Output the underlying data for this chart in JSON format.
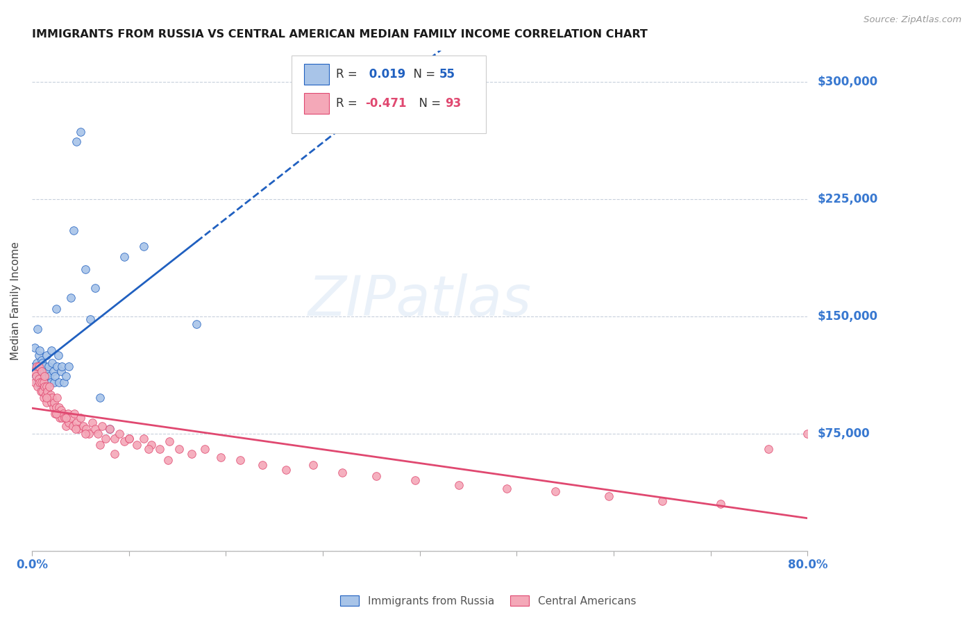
{
  "title": "IMMIGRANTS FROM RUSSIA VS CENTRAL AMERICAN MEDIAN FAMILY INCOME CORRELATION CHART",
  "source": "Source: ZipAtlas.com",
  "ylabel": "Median Family Income",
  "yticks": [
    0,
    75000,
    150000,
    225000,
    300000
  ],
  "ytick_labels": [
    "",
    "$75,000",
    "$150,000",
    "$225,000",
    "$300,000"
  ],
  "ymin": 0,
  "ymax": 320000,
  "xmin": 0.0,
  "xmax": 0.8,
  "color_russia": "#a8c4e8",
  "color_central": "#f4a8b8",
  "color_russia_line": "#2060c0",
  "color_central_line": "#e04870",
  "color_axis_labels": "#3878d0",
  "color_grid": "#c8d0dc",
  "background_color": "#ffffff",
  "russia_x": [
    0.002,
    0.003,
    0.004,
    0.005,
    0.006,
    0.006,
    0.007,
    0.007,
    0.008,
    0.008,
    0.009,
    0.009,
    0.01,
    0.01,
    0.011,
    0.011,
    0.012,
    0.012,
    0.013,
    0.013,
    0.014,
    0.014,
    0.015,
    0.015,
    0.016,
    0.017,
    0.017,
    0.018,
    0.019,
    0.02,
    0.021,
    0.022,
    0.023,
    0.024,
    0.025,
    0.026,
    0.027,
    0.028,
    0.03,
    0.031,
    0.033,
    0.035,
    0.038,
    0.04,
    0.043,
    0.046,
    0.05,
    0.055,
    0.06,
    0.065,
    0.07,
    0.08,
    0.095,
    0.115,
    0.17
  ],
  "russia_y": [
    118000,
    130000,
    112000,
    120000,
    108000,
    142000,
    110000,
    125000,
    118000,
    128000,
    105000,
    115000,
    122000,
    112000,
    108000,
    120000,
    115000,
    105000,
    118000,
    110000,
    112000,
    100000,
    108000,
    125000,
    115000,
    108000,
    118000,
    112000,
    108000,
    128000,
    120000,
    115000,
    108000,
    112000,
    155000,
    118000,
    125000,
    108000,
    115000,
    118000,
    108000,
    112000,
    118000,
    162000,
    205000,
    262000,
    268000,
    180000,
    148000,
    168000,
    98000,
    78000,
    188000,
    195000,
    145000
  ],
  "central_x": [
    0.002,
    0.003,
    0.004,
    0.005,
    0.006,
    0.007,
    0.007,
    0.008,
    0.009,
    0.01,
    0.01,
    0.011,
    0.012,
    0.012,
    0.013,
    0.013,
    0.014,
    0.015,
    0.015,
    0.016,
    0.017,
    0.018,
    0.019,
    0.02,
    0.021,
    0.022,
    0.023,
    0.024,
    0.025,
    0.026,
    0.027,
    0.028,
    0.029,
    0.03,
    0.031,
    0.032,
    0.034,
    0.035,
    0.037,
    0.038,
    0.04,
    0.042,
    0.044,
    0.046,
    0.048,
    0.05,
    0.053,
    0.056,
    0.059,
    0.062,
    0.065,
    0.068,
    0.072,
    0.076,
    0.08,
    0.085,
    0.09,
    0.095,
    0.1,
    0.108,
    0.115,
    0.123,
    0.132,
    0.142,
    0.152,
    0.165,
    0.178,
    0.195,
    0.215,
    0.238,
    0.262,
    0.29,
    0.32,
    0.355,
    0.395,
    0.44,
    0.49,
    0.54,
    0.595,
    0.65,
    0.71,
    0.76,
    0.8,
    0.015,
    0.025,
    0.035,
    0.045,
    0.055,
    0.07,
    0.085,
    0.1,
    0.12,
    0.14
  ],
  "central_y": [
    115000,
    108000,
    112000,
    118000,
    105000,
    110000,
    118000,
    108000,
    102000,
    115000,
    108000,
    102000,
    108000,
    98000,
    105000,
    112000,
    100000,
    105000,
    95000,
    102000,
    98000,
    105000,
    100000,
    95000,
    98000,
    92000,
    95000,
    88000,
    92000,
    98000,
    88000,
    92000,
    85000,
    90000,
    85000,
    88000,
    85000,
    80000,
    88000,
    82000,
    85000,
    80000,
    88000,
    82000,
    78000,
    85000,
    80000,
    78000,
    75000,
    82000,
    78000,
    75000,
    80000,
    72000,
    78000,
    72000,
    75000,
    70000,
    72000,
    68000,
    72000,
    68000,
    65000,
    70000,
    65000,
    62000,
    65000,
    60000,
    58000,
    55000,
    52000,
    55000,
    50000,
    48000,
    45000,
    42000,
    40000,
    38000,
    35000,
    32000,
    30000,
    65000,
    75000,
    98000,
    88000,
    85000,
    78000,
    75000,
    68000,
    62000,
    72000,
    65000,
    58000
  ]
}
